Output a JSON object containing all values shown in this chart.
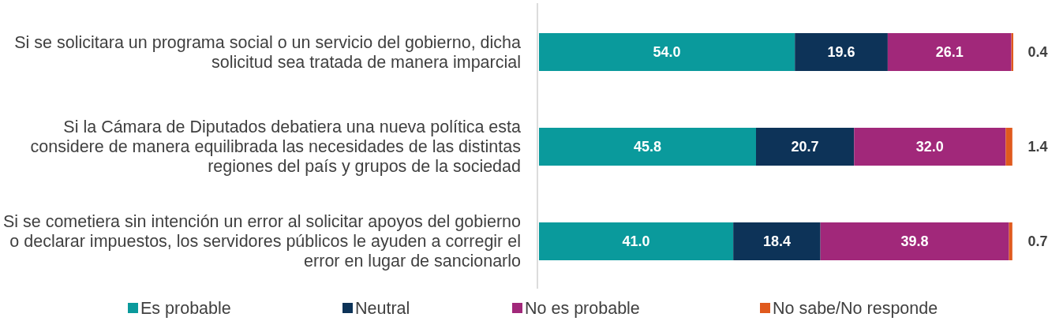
{
  "chart_data": {
    "type": "bar",
    "orientation": "horizontal",
    "stacked": true,
    "legend": "bottom",
    "categories": [
      "Si se solicitara un programa social o un servicio del gobierno, dicha solicitud sea tratada de manera imparcial",
      "Si la Cámara de Diputados debatiera una nueva política esta considere de manera equilibrada las necesidades de las distintas regiones del país y grupos de la sociedad",
      "Si se cometiera sin intención un error al solicitar apoyos del gobierno o declarar impuestos, los servidores públicos le ayuden a corregir el error en lugar de sancionarlo"
    ],
    "series": [
      {
        "name": "Es probable",
        "color": "#0a9a9c",
        "values": [
          54.0,
          45.8,
          41.0
        ],
        "value_labels": [
          "54.0",
          "45.8",
          "41.0"
        ]
      },
      {
        "name": "Neutral",
        "color": "#0d3358",
        "values": [
          19.6,
          20.7,
          18.4
        ],
        "value_labels": [
          "19.6",
          "20.7",
          "18.4"
        ]
      },
      {
        "name": "No es probable",
        "color": "#a1287a",
        "values": [
          26.1,
          32.0,
          39.8
        ],
        "value_labels": [
          "26.1",
          "32.0",
          "39.8"
        ]
      },
      {
        "name": "No sabe/No responde",
        "color": "#e05a1e",
        "values": [
          0.4,
          1.4,
          0.7
        ],
        "value_labels": [
          "0.4",
          "1.4",
          "0.7"
        ]
      }
    ]
  }
}
